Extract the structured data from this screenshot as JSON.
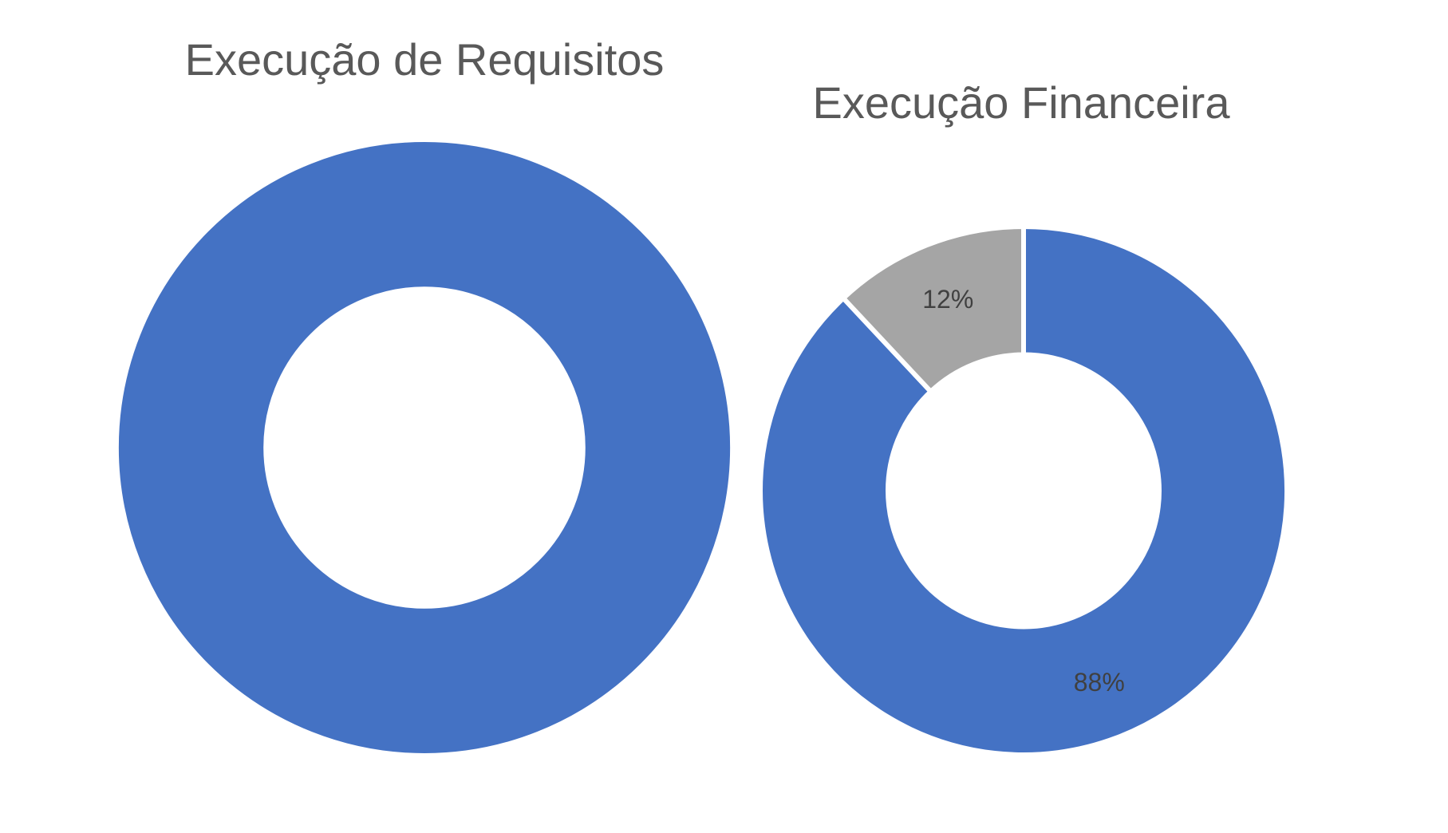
{
  "chart_data": [
    {
      "type": "donut",
      "title": "Execução de Requisitos",
      "slices": [
        {
          "name": "",
          "value": 100,
          "color": "#4472C4",
          "label": ""
        }
      ]
    },
    {
      "type": "donut",
      "title": "Execução Financeira",
      "slices": [
        {
          "name": "",
          "value": 88,
          "color": "#4472C4",
          "label": "88%"
        },
        {
          "name": "",
          "value": 12,
          "color": "#A5A5A5",
          "label": "12%"
        }
      ]
    }
  ]
}
